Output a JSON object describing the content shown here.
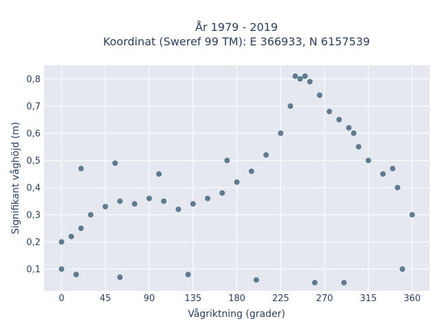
{
  "chart_data": {
    "type": "scatter",
    "title_lines": [
      "År 1979 - 2019",
      "Koordinat (Sweref 99 TM): E 366933, N 6157539"
    ],
    "xlabel": "Vågriktning (grader)",
    "ylabel": "Signifikant våghöjd (m)",
    "xlim": [
      -18,
      378
    ],
    "ylim": [
      0.02,
      0.85
    ],
    "xticks": [
      0,
      45,
      90,
      135,
      180,
      225,
      270,
      315,
      360
    ],
    "xtick_labels": [
      "0",
      "45",
      "90",
      "135",
      "180",
      "225",
      "270",
      "315",
      "360"
    ],
    "yticks": [
      0.1,
      0.2,
      0.3,
      0.4,
      0.5,
      0.6,
      0.7,
      0.8
    ],
    "ytick_labels": [
      "0,1",
      "0,2",
      "0,3",
      "0,4",
      "0,5",
      "0,6",
      "0,7",
      "0,8"
    ],
    "grid": true,
    "marker_color": "#2f5670",
    "background_color": "#e5e8ef",
    "x": [
      0,
      10,
      20,
      30,
      45,
      60,
      75,
      90,
      105,
      120,
      135,
      150,
      165,
      180,
      195,
      210,
      225,
      235,
      245,
      255,
      265,
      275,
      285,
      295,
      305,
      315,
      330,
      345,
      360,
      20,
      55,
      100,
      170,
      240,
      250,
      300,
      340,
      0,
      15,
      60,
      130,
      200,
      260,
      290,
      350
    ],
    "y": [
      0.2,
      0.22,
      0.25,
      0.3,
      0.33,
      0.35,
      0.34,
      0.36,
      0.35,
      0.32,
      0.34,
      0.36,
      0.38,
      0.42,
      0.46,
      0.52,
      0.6,
      0.7,
      0.8,
      0.79,
      0.74,
      0.68,
      0.65,
      0.62,
      0.55,
      0.5,
      0.45,
      0.4,
      0.3,
      0.47,
      0.49,
      0.45,
      0.5,
      0.81,
      0.81,
      0.6,
      0.47,
      0.1,
      0.08,
      0.07,
      0.08,
      0.06,
      0.05,
      0.05,
      0.1
    ]
  }
}
